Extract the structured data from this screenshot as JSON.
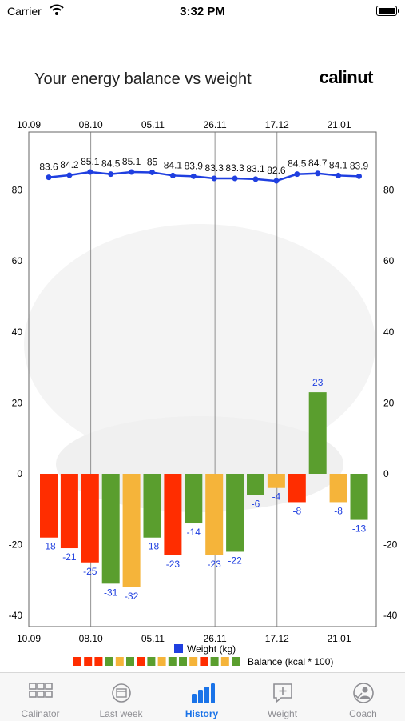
{
  "status_bar": {
    "carrier": "Carrier",
    "time": "3:32 PM"
  },
  "header": {
    "title": "Your energy balance vs weight",
    "brand": "calinut"
  },
  "chart_data": {
    "type": "bar+line",
    "x_ticks": [
      "10.09",
      "08.10",
      "05.11",
      "26.11",
      "17.12",
      "21.01"
    ],
    "y_ticks": [
      80,
      60,
      40,
      20,
      0,
      -20,
      -40
    ],
    "ylim": [
      -40,
      85
    ],
    "grid": "vertical",
    "weight": {
      "name": "Weight (kg)",
      "color": "#1f3fe0",
      "values": [
        83.6,
        84.2,
        85.1,
        84.5,
        85.1,
        85,
        84.1,
        83.9,
        83.3,
        83.3,
        83.1,
        82.6,
        84.5,
        84.7,
        84.1,
        83.9
      ],
      "labels": [
        "83.6",
        "84.2",
        "85.1",
        "84.5",
        "85.1",
        "85",
        "84.1",
        "83.9",
        "83.3",
        "83.3",
        "83.1",
        "82.6",
        "84.5",
        "84.7",
        "84.1",
        "83.9"
      ]
    },
    "balance": {
      "name": "Balance (kcal * 100)",
      "values": [
        -18,
        -21,
        -25,
        -31,
        -32,
        -18,
        -23,
        -14,
        -23,
        -22,
        -6,
        -4,
        -8,
        23,
        -8,
        -13
      ],
      "labels": [
        "-18",
        "-21",
        "-25",
        "-31",
        "-32",
        "-18",
        "-23",
        "-14",
        "-23",
        "-22",
        "-6",
        "-4",
        "-8",
        "23",
        "-8",
        "-13"
      ],
      "colors": [
        "#ff2d00",
        "#ff2d00",
        "#ff2d00",
        "#5a9e2e",
        "#f5b43a",
        "#5a9e2e",
        "#ff2d00",
        "#5a9e2e",
        "#f5b43a",
        "#5a9e2e",
        "#5a9e2e",
        "#f5b43a",
        "#ff2d00",
        "#5a9e2e",
        "#f5b43a",
        "#5a9e2e"
      ]
    },
    "legend": {
      "weight": "Weight (kg)",
      "balance": "Balance (kcal * 100)",
      "placement": "bottom"
    }
  },
  "tabs": [
    {
      "label": "Calinator",
      "icon": "grid-icon",
      "active": false
    },
    {
      "label": "Last week",
      "icon": "calendar-icon",
      "active": false
    },
    {
      "label": "History",
      "icon": "bar-chart-icon",
      "active": true
    },
    {
      "label": "Weight",
      "icon": "add-message-icon",
      "active": false
    },
    {
      "label": "Coach",
      "icon": "coach-icon",
      "active": false
    }
  ],
  "colors": {
    "accent": "#1a73e8",
    "inactive": "#8e8e93"
  }
}
